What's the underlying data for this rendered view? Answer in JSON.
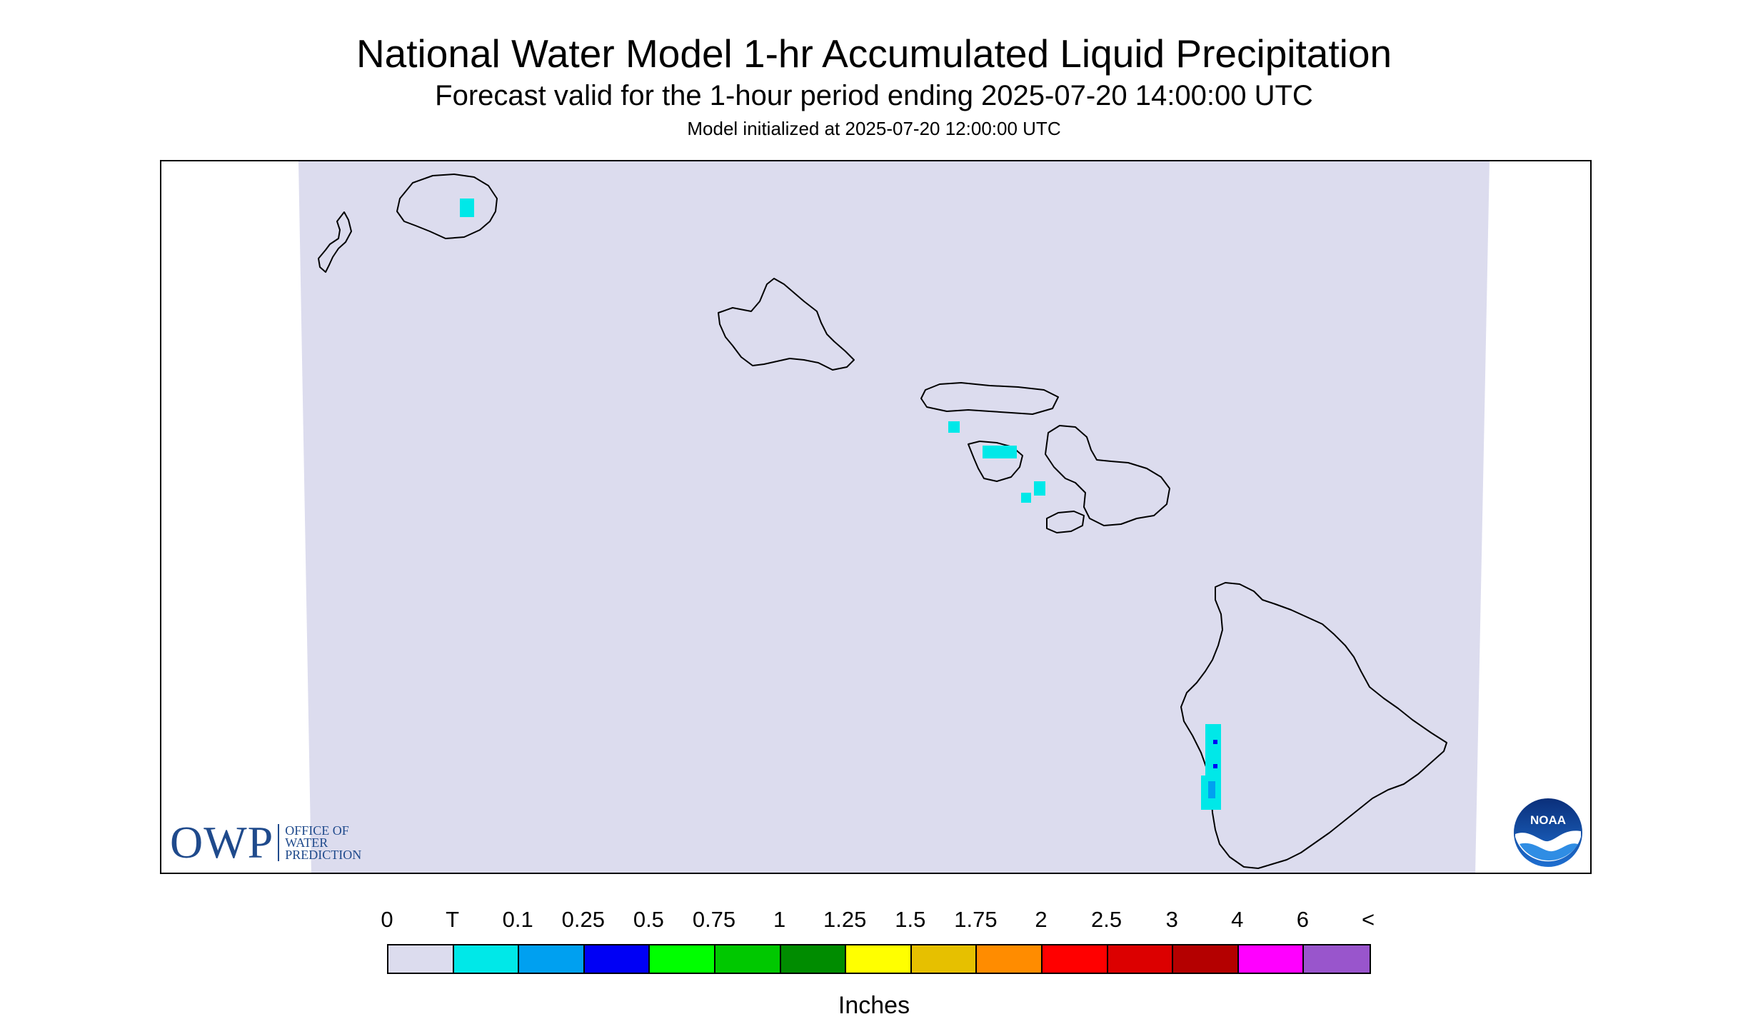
{
  "header": {
    "title": "National Water Model 1-hr Accumulated Liquid Precipitation",
    "subtitle": "Forecast valid for the 1-hour period ending 2025-07-20 14:00:00 UTC",
    "init_line": "Model initialized at 2025-07-20 12:00:00 UTC"
  },
  "map": {
    "background_color": "#dcdcee",
    "islands": [
      "Niihau",
      "Kauai",
      "Oahu",
      "Molokai",
      "Lanai",
      "Maui",
      "Kahoolawe",
      "Hawaii"
    ],
    "precip_areas": [
      {
        "island": "Kauai",
        "category": "T"
      },
      {
        "island": "Molokai",
        "category": "T"
      },
      {
        "island": "Lanai",
        "category": "T"
      },
      {
        "island": "Kahoolawe",
        "category": "T"
      },
      {
        "island": "Hawaii",
        "category": "T"
      },
      {
        "island": "Hawaii",
        "category": "0.1"
      },
      {
        "island": "Hawaii",
        "category": "0.25"
      }
    ]
  },
  "logos": {
    "owp_mark": "OWP",
    "owp_text_lines": [
      "OFFICE OF",
      "WATER",
      "PREDICTION"
    ],
    "noaa_text": "NOAA"
  },
  "legend": {
    "labels": [
      "0",
      "T",
      "0.1",
      "0.25",
      "0.5",
      "0.75",
      "1",
      "1.25",
      "1.5",
      "1.75",
      "2",
      "2.5",
      "3",
      "4",
      "6",
      "<"
    ],
    "colors": [
      "#dcdcee",
      "#00e8e8",
      "#00a0f0",
      "#0000f5",
      "#00ff00",
      "#00c800",
      "#008c00",
      "#ffff00",
      "#e6c000",
      "#ff8c00",
      "#ff0000",
      "#dc0000",
      "#b40000",
      "#ff00ff",
      "#9955cc"
    ],
    "units": "Inches"
  }
}
